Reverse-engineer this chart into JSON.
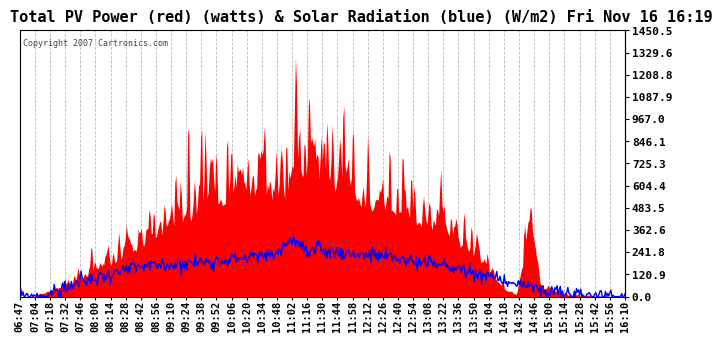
{
  "title": "Total PV Power (red) (watts) & Solar Radiation (blue) (W/m2) Fri Nov 16 16:19",
  "copyright": "Copyright 2007 Cartronics.com",
  "bg_color": "#ffffff",
  "plot_bg_color": "#ffffff",
  "grid_color": "#bbbbbb",
  "y_min": 0.0,
  "y_max": 1450.5,
  "y_ticks": [
    0.0,
    120.9,
    241.8,
    362.6,
    483.5,
    604.4,
    725.3,
    846.1,
    967.0,
    1087.9,
    1208.8,
    1329.6,
    1450.5
  ],
  "x_labels": [
    "06:47",
    "07:04",
    "07:18",
    "07:32",
    "07:46",
    "08:00",
    "08:14",
    "08:28",
    "08:42",
    "08:56",
    "09:10",
    "09:24",
    "09:38",
    "09:52",
    "10:06",
    "10:20",
    "10:34",
    "10:48",
    "11:02",
    "11:16",
    "11:30",
    "11:44",
    "11:58",
    "12:12",
    "12:26",
    "12:40",
    "12:54",
    "13:08",
    "13:22",
    "13:36",
    "13:50",
    "14:04",
    "14:18",
    "14:32",
    "14:46",
    "15:00",
    "15:14",
    "15:28",
    "15:42",
    "15:56",
    "16:10"
  ],
  "red_fill_color": "#ff0000",
  "blue_line_color": "#0000ff",
  "title_fontsize": 11,
  "axis_fontsize": 7.5
}
